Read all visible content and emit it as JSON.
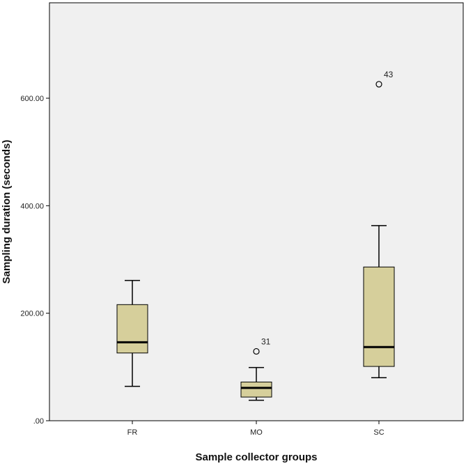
{
  "chart_data": {
    "type": "boxplot",
    "xlabel": "Sample collector groups",
    "ylabel": "Sampling duration (seconds)",
    "ylim": [
      0,
      750
    ],
    "yticks": [
      0,
      200,
      400,
      600
    ],
    "ytick_labels": [
      ".00",
      "200.00",
      "400.00",
      "600.00"
    ],
    "grid": false,
    "colors": {
      "box_fill": "#d6cf9b",
      "plot_bg": "#f0f0f0",
      "stroke": "#000000"
    },
    "groups": [
      {
        "category": "FR",
        "min": 64,
        "q1": 126,
        "median": 146,
        "q3": 216,
        "max": 261,
        "outliers": []
      },
      {
        "category": "MO",
        "min": 38,
        "q1": 44,
        "median": 61,
        "q3": 72,
        "max": 99,
        "outliers": [
          {
            "value": 129,
            "label": "31"
          }
        ]
      },
      {
        "category": "SC",
        "min": 80,
        "q1": 101,
        "median": 137,
        "q3": 286,
        "max": 363,
        "outliers": [
          {
            "value": 626,
            "label": "43"
          }
        ]
      }
    ]
  }
}
